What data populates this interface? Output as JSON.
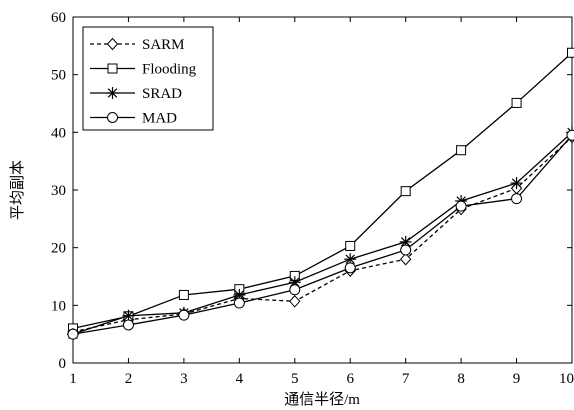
{
  "chart_data": {
    "type": "line",
    "x": [
      1,
      2,
      3,
      4,
      5,
      6,
      7,
      8,
      9,
      10
    ],
    "xlabel": "通信半径/m",
    "ylabel": "平均副本",
    "xlim": [
      1,
      10
    ],
    "ylim": [
      0,
      60
    ],
    "xticks": [
      1,
      2,
      3,
      4,
      5,
      6,
      7,
      8,
      9,
      10
    ],
    "yticks": [
      0,
      10,
      20,
      30,
      40,
      50,
      60
    ],
    "grid": false,
    "legend_position": "top-left",
    "series": [
      {
        "name": "SARM",
        "marker": "diamond",
        "line_style": "dashed",
        "color": "#000000",
        "values": [
          5.4,
          7.5,
          8.5,
          11.2,
          10.7,
          16.0,
          18.0,
          26.7,
          30.3,
          39.2
        ]
      },
      {
        "name": "Flooding",
        "marker": "square",
        "line_style": "solid",
        "color": "#000000",
        "values": [
          6.0,
          8.1,
          11.8,
          12.8,
          15.1,
          20.3,
          29.8,
          36.9,
          45.1,
          53.8
        ]
      },
      {
        "name": "SRAD",
        "marker": "asterisk",
        "line_style": "solid",
        "color": "#000000",
        "values": [
          5.0,
          8.2,
          8.7,
          11.8,
          14.0,
          18.0,
          21.0,
          28.1,
          31.2,
          40.0
        ]
      },
      {
        "name": "MAD",
        "marker": "circle",
        "line_style": "solid",
        "color": "#000000",
        "values": [
          5.0,
          6.6,
          8.3,
          10.4,
          12.7,
          16.5,
          19.6,
          27.2,
          28.5,
          39.5
        ]
      }
    ]
  }
}
